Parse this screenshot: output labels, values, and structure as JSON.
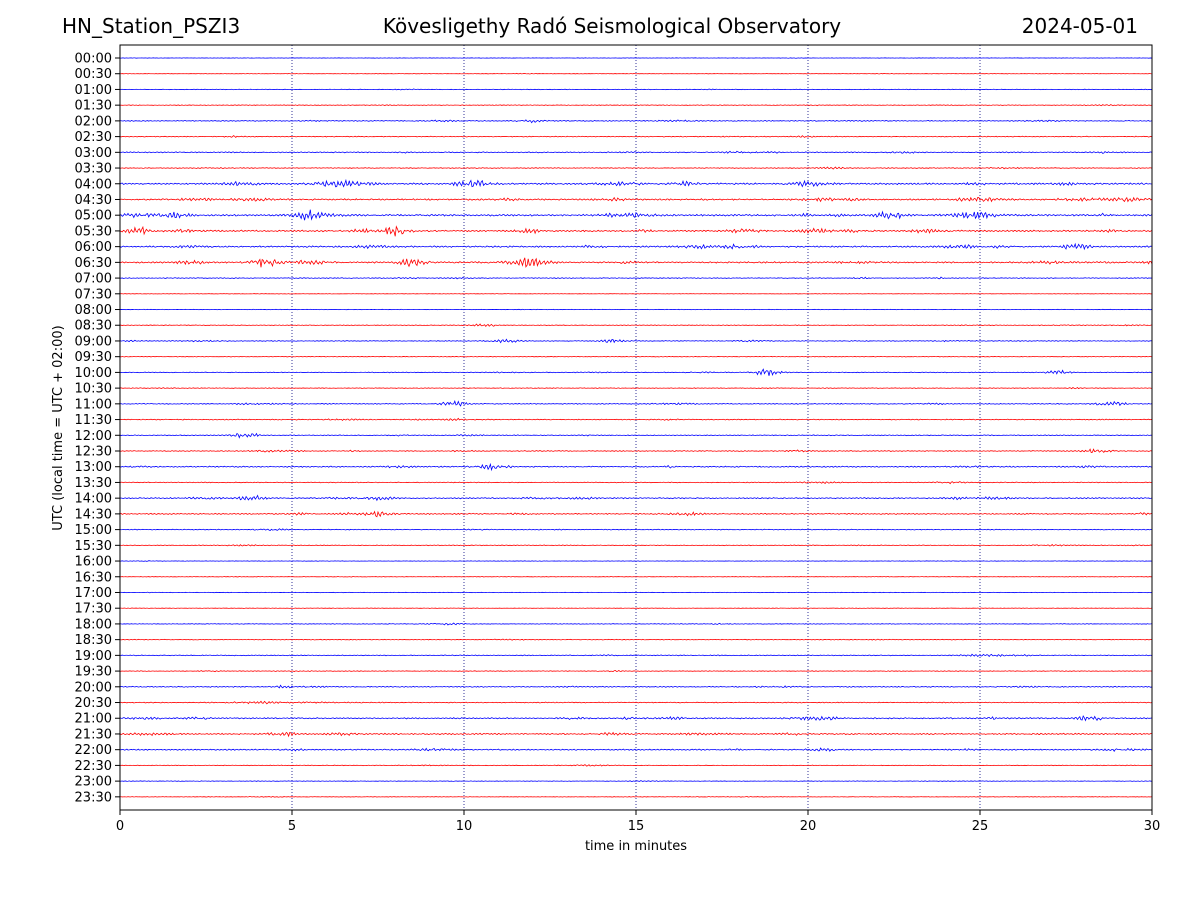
{
  "header": {
    "station": "HN_Station_PSZI3",
    "title": "Kövesligethy Radó Seismological Observatory",
    "date": "2024-05-01"
  },
  "chart_data": {
    "type": "line",
    "title": "Kövesligethy Radó Seismological Observatory",
    "xlabel": "time in minutes",
    "ylabel": "UTC (local time = UTC + 02:00)",
    "xlim": [
      0,
      30
    ],
    "x_ticks": [
      0,
      5,
      10,
      15,
      20,
      25,
      30
    ],
    "vertical_grid": "dotted at every 5 minutes",
    "rows": [
      "00:00",
      "00:30",
      "01:00",
      "01:30",
      "02:00",
      "02:30",
      "03:00",
      "03:30",
      "04:00",
      "04:30",
      "05:00",
      "05:30",
      "06:00",
      "06:30",
      "07:00",
      "07:30",
      "08:00",
      "08:30",
      "09:00",
      "09:30",
      "10:00",
      "10:30",
      "11:00",
      "11:30",
      "12:00",
      "12:30",
      "13:00",
      "13:30",
      "14:00",
      "14:30",
      "15:00",
      "15:30",
      "16:00",
      "16:30",
      "17:00",
      "17:30",
      "18:00",
      "18:30",
      "19:00",
      "19:30",
      "20:00",
      "20:30",
      "21:00",
      "21:30",
      "22:00",
      "22:30",
      "23:00",
      "23:30"
    ],
    "trace_colors": [
      "#0000ff",
      "#ff0000"
    ],
    "trace_activity": [
      0.05,
      0.06,
      0.15,
      0.18,
      0.35,
      0.3,
      0.4,
      0.3,
      0.8,
      0.7,
      0.85,
      0.75,
      0.7,
      0.7,
      0.3,
      0.08,
      0.1,
      0.2,
      0.3,
      0.15,
      0.25,
      0.2,
      0.35,
      0.35,
      0.3,
      0.35,
      0.5,
      0.3,
      0.5,
      0.5,
      0.3,
      0.25,
      0.1,
      0.1,
      0.1,
      0.08,
      0.2,
      0.2,
      0.3,
      0.2,
      0.4,
      0.35,
      0.55,
      0.6,
      0.5,
      0.2,
      0.15,
      0.12
    ],
    "events": [
      {
        "row": "00:30",
        "minute": 11.8,
        "amp": 0.3
      },
      {
        "row": "02:00",
        "minute": 12.0,
        "amp": 1.5
      },
      {
        "row": "04:00",
        "minute": 20.0,
        "amp": 2.5
      },
      {
        "row": "04:00",
        "minute": 16.5,
        "amp": 2.0
      },
      {
        "row": "04:30",
        "minute": 24.8,
        "amp": 3.0
      },
      {
        "row": "05:00",
        "minute": 5.5,
        "amp": 4.0
      },
      {
        "row": "05:00",
        "minute": 22.4,
        "amp": 4.0
      },
      {
        "row": "05:30",
        "minute": 8.0,
        "amp": 5.0
      },
      {
        "row": "05:30",
        "minute": 0.6,
        "amp": 3.5
      },
      {
        "row": "06:00",
        "minute": 27.8,
        "amp": 2.5
      },
      {
        "row": "06:30",
        "minute": 4.2,
        "amp": 5.0
      },
      {
        "row": "06:30",
        "minute": 8.5,
        "amp": 4.0
      },
      {
        "row": "06:30",
        "minute": 11.8,
        "amp": 3.5
      },
      {
        "row": "08:30",
        "minute": 10.6,
        "amp": 1.5
      },
      {
        "row": "09:00",
        "minute": 11.2,
        "amp": 2.0
      },
      {
        "row": "09:00",
        "minute": 14.3,
        "amp": 1.5
      },
      {
        "row": "10:00",
        "minute": 18.8,
        "amp": 3.5
      },
      {
        "row": "10:00",
        "minute": 27.3,
        "amp": 2.0
      },
      {
        "row": "11:00",
        "minute": 9.7,
        "amp": 3.0
      },
      {
        "row": "11:00",
        "minute": 28.9,
        "amp": 2.0
      },
      {
        "row": "12:00",
        "minute": 3.6,
        "amp": 2.5
      },
      {
        "row": "12:30",
        "minute": 28.4,
        "amp": 2.5
      },
      {
        "row": "13:00",
        "minute": 10.9,
        "amp": 3.0
      },
      {
        "row": "14:00",
        "minute": 3.8,
        "amp": 3.0
      },
      {
        "row": "14:00",
        "minute": 7.5,
        "amp": 2.5
      },
      {
        "row": "14:30",
        "minute": 7.4,
        "amp": 2.5
      },
      {
        "row": "21:00",
        "minute": 28.2,
        "amp": 2.5
      }
    ]
  }
}
